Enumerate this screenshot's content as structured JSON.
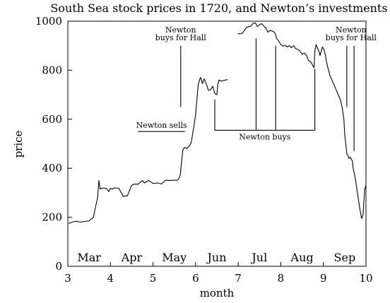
{
  "chart_data": {
    "type": "line",
    "title": "South Sea stock prices in 1720, and Newton’s investments",
    "xlabel": "month",
    "ylabel": "price",
    "xlim": [
      3,
      10
    ],
    "ylim": [
      0,
      1000
    ],
    "x_ticks": [
      "3",
      "4",
      "5",
      "6",
      "7",
      "8",
      "9",
      "10"
    ],
    "y_ticks": [
      "0",
      "200",
      "400",
      "600",
      "800",
      "1000"
    ],
    "months": [
      {
        "label": "Mar",
        "x": 3.5
      },
      {
        "label": "Apr",
        "x": 4.5
      },
      {
        "label": "May",
        "x": 5.5
      },
      {
        "label": "Jun",
        "x": 6.5
      },
      {
        "label": "Jul",
        "x": 7.5
      },
      {
        "label": "Aug",
        "x": 8.5
      },
      {
        "label": "Sep",
        "x": 9.5
      }
    ],
    "grid": false,
    "series": [
      {
        "segments": [
          [
            [
              3.02,
              175
            ],
            [
              3.1,
              180
            ],
            [
              3.2,
              184
            ],
            [
              3.3,
              180
            ],
            [
              3.4,
              183
            ],
            [
              3.5,
              185
            ],
            [
              3.6,
              200
            ],
            [
              3.66,
              250
            ],
            [
              3.7,
              280
            ],
            [
              3.73,
              350
            ],
            [
              3.76,
              315
            ],
            [
              3.82,
              320
            ],
            [
              3.9,
              318
            ],
            [
              3.96,
              305
            ],
            [
              4.0,
              318
            ],
            [
              4.05,
              315
            ],
            [
              4.1,
              320
            ],
            [
              4.2,
              318
            ],
            [
              4.3,
              285
            ],
            [
              4.4,
              288
            ],
            [
              4.45,
              310
            ],
            [
              4.5,
              330
            ],
            [
              4.55,
              335
            ],
            [
              4.65,
              335
            ],
            [
              4.75,
              350
            ],
            [
              4.8,
              340
            ],
            [
              4.9,
              350
            ],
            [
              5.0,
              338
            ],
            [
              5.1,
              340
            ],
            [
              5.2,
              336
            ],
            [
              5.3,
              352
            ],
            [
              5.4,
              350
            ],
            [
              5.5,
              352
            ],
            [
              5.55,
              350
            ],
            [
              5.6,
              355
            ],
            [
              5.64,
              372
            ],
            [
              5.66,
              410
            ],
            [
              5.7,
              475
            ],
            [
              5.74,
              485
            ],
            [
              5.8,
              480
            ],
            [
              5.86,
              492
            ],
            [
              5.9,
              505
            ],
            [
              5.93,
              540
            ],
            [
              5.96,
              570
            ],
            [
              6.0,
              620
            ],
            [
              6.03,
              680
            ],
            [
              6.06,
              740
            ],
            [
              6.1,
              765
            ],
            [
              6.12,
              770
            ],
            [
              6.16,
              745
            ],
            [
              6.2,
              765
            ],
            [
              6.26,
              740
            ],
            [
              6.3,
              718
            ],
            [
              6.35,
              720
            ],
            [
              6.4,
              735
            ],
            [
              6.45,
              705
            ],
            [
              6.5,
              700
            ],
            [
              6.52,
              740
            ],
            [
              6.55,
              760
            ],
            [
              6.6,
              755
            ],
            [
              6.7,
              760
            ],
            [
              6.75,
              762
            ]
          ],
          [
            [
              6.99,
              950
            ],
            [
              7.05,
              948
            ],
            [
              7.1,
              952
            ],
            [
              7.2,
              975
            ],
            [
              7.3,
              980
            ],
            [
              7.35,
              992
            ],
            [
              7.4,
              993
            ],
            [
              7.45,
              978
            ],
            [
              7.5,
              985
            ],
            [
              7.55,
              990
            ],
            [
              7.6,
              980
            ],
            [
              7.65,
              972
            ],
            [
              7.7,
              955
            ],
            [
              7.75,
              962
            ],
            [
              7.8,
              960
            ],
            [
              7.85,
              955
            ],
            [
              7.88,
              945
            ],
            [
              7.9,
              930
            ],
            [
              7.95,
              920
            ],
            [
              8.0,
              905
            ],
            [
              8.05,
              898
            ],
            [
              8.1,
              902
            ],
            [
              8.15,
              895
            ],
            [
              8.2,
              900
            ],
            [
              8.25,
              892
            ],
            [
              8.3,
              900
            ],
            [
              8.35,
              888
            ],
            [
              8.4,
              885
            ],
            [
              8.45,
              878
            ],
            [
              8.5,
              865
            ],
            [
              8.55,
              870
            ],
            [
              8.6,
              862
            ],
            [
              8.65,
              840
            ],
            [
              8.7,
              835
            ],
            [
              8.75,
              820
            ],
            [
              8.78,
              810
            ],
            [
              8.8,
              880
            ],
            [
              8.83,
              905
            ],
            [
              8.85,
              895
            ],
            [
              8.9,
              875
            ],
            [
              8.92,
              860
            ],
            [
              8.95,
              878
            ],
            [
              8.98,
              895
            ],
            [
              9.02,
              880
            ],
            [
              9.05,
              860
            ],
            [
              9.07,
              838
            ],
            [
              9.1,
              815
            ],
            [
              9.15,
              780
            ],
            [
              9.2,
              760
            ],
            [
              9.25,
              740
            ],
            [
              9.3,
              720
            ],
            [
              9.35,
              700
            ],
            [
              9.4,
              680
            ],
            [
              9.45,
              640
            ],
            [
              9.48,
              600
            ],
            [
              9.5,
              540
            ],
            [
              9.53,
              490
            ],
            [
              9.55,
              460
            ],
            [
              9.58,
              450
            ],
            [
              9.6,
              440
            ],
            [
              9.63,
              445
            ],
            [
              9.68,
              430
            ],
            [
              9.7,
              400
            ],
            [
              9.75,
              360
            ],
            [
              9.8,
              300
            ],
            [
              9.85,
              240
            ],
            [
              9.88,
              210
            ],
            [
              9.9,
              195
            ],
            [
              9.93,
              210
            ],
            [
              9.97,
              315
            ],
            [
              10.0,
              330
            ]
          ]
        ]
      }
    ],
    "annotations": {
      "newton_sells": {
        "text": "Newton sells",
        "x_from": 4.65,
        "x_to": 5.75,
        "y": 550
      },
      "newton_buys": {
        "text": "Newton buys",
        "x_from": 6.45,
        "x_to": 8.8,
        "y": 555,
        "ticks": [
          6.45,
          7.42,
          7.88,
          8.8
        ],
        "tick_tops": [
          680,
          930,
          900,
          805
        ]
      },
      "buys_for_hall_1": {
        "lines": [
          "Newton",
          "buys for Hall"
        ],
        "x": 5.65,
        "y_from": 900,
        "y_to": 650
      },
      "buys_for_hall_2": {
        "lines": [
          "Newton",
          "buys for Hall"
        ],
        "x": 9.55,
        "y_from": 900,
        "y_to": 650
      },
      "hall_2_extra_tick": {
        "x": 9.72,
        "y_from": 900,
        "y_to": 470
      }
    }
  }
}
